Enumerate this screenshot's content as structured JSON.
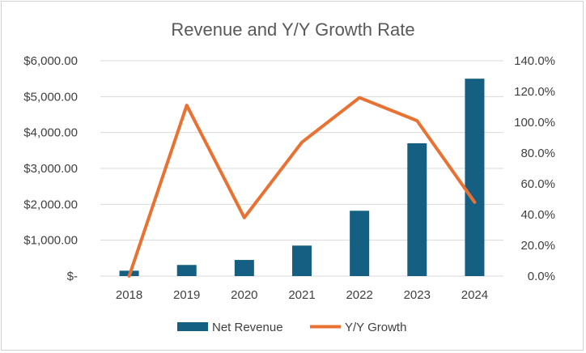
{
  "chart_data": {
    "type": "bar",
    "title": "Revenue and Y/Y Growth Rate",
    "categories": [
      "2018",
      "2019",
      "2020",
      "2021",
      "2022",
      "2023",
      "2024"
    ],
    "series": [
      {
        "name": "Net Revenue",
        "type": "bar",
        "axis": "left",
        "color": "#156082",
        "values": [
          150,
          310,
          450,
          850,
          1820,
          3700,
          5500
        ]
      },
      {
        "name": "Y/Y Growth",
        "type": "line",
        "axis": "right",
        "color": "#E97132",
        "values": [
          0.0,
          111.0,
          38.0,
          87.0,
          116.0,
          101.0,
          48.0
        ]
      }
    ],
    "y_left": {
      "min": 0,
      "max": 6000,
      "tick_labels": [
        "$-",
        "$1,000.00",
        "$2,000.00",
        "$3,000.00",
        "$4,000.00",
        "$5,000.00",
        "$6,000.00"
      ]
    },
    "y_right": {
      "min": 0,
      "max": 140,
      "tick_labels": [
        "0.0%",
        "20.0%",
        "40.0%",
        "60.0%",
        "80.0%",
        "100.0%",
        "120.0%",
        "140.0%"
      ]
    },
    "grid": true,
    "legend_position": "bottom"
  }
}
